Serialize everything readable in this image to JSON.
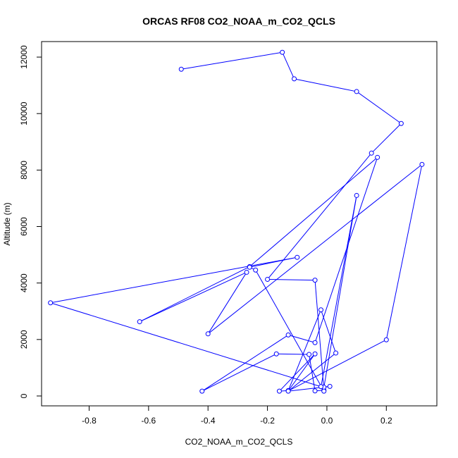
{
  "chart_data": {
    "type": "line",
    "title": "ORCAS RF08 CO2_NOAA_m_CO2_QCLS",
    "xlabel": "CO2_NOAA_m_CO2_QCLS",
    "ylabel": "Altitude (m)",
    "xlim": [
      -0.96,
      0.37
    ],
    "ylim": [
      -350,
      12550
    ],
    "x_ticks": [
      -0.8,
      -0.6,
      -0.4,
      -0.2,
      0.0,
      0.2
    ],
    "x_tick_labels": [
      "-0.8",
      "-0.6",
      "-0.4",
      "-0.2",
      "0.0",
      "0.2"
    ],
    "y_ticks": [
      0,
      2000,
      4000,
      6000,
      8000,
      10000,
      12000
    ],
    "y_tick_labels": [
      "0",
      "2000",
      "4000",
      "6000",
      "8000",
      "10000",
      "12000"
    ],
    "grid": false,
    "color": "#0000ff",
    "marker": "open-circle",
    "series": [
      {
        "points": [
          [
            -0.49,
            11570
          ],
          [
            -0.15,
            12170
          ],
          [
            -0.11,
            11230
          ],
          [
            0.1,
            10780
          ],
          [
            0.25,
            9650
          ],
          [
            0.15,
            8600
          ],
          [
            -0.2,
            4130
          ],
          [
            -0.04,
            4100
          ],
          [
            -0.01,
            200
          ],
          [
            -0.04,
            180
          ],
          [
            -0.06,
            1470
          ],
          [
            -0.17,
            1490
          ],
          [
            -0.42,
            170
          ],
          [
            -0.13,
            2160
          ],
          [
            -0.04,
            1890
          ],
          [
            0.17,
            8450
          ],
          [
            -0.26,
            4580
          ],
          [
            -0.63,
            2630
          ],
          [
            -0.27,
            4380
          ],
          [
            -0.4,
            2200
          ],
          [
            0.32,
            8200
          ],
          [
            0.2,
            1990
          ],
          [
            -0.13,
            180
          ],
          [
            -0.04,
            1490
          ],
          [
            -0.16,
            170
          ],
          [
            -0.13,
            190
          ],
          [
            -0.02,
            3050
          ],
          [
            0.03,
            1520
          ],
          [
            -0.13,
            170
          ],
          [
            0.01,
            340
          ],
          [
            -0.01,
            310
          ],
          [
            0.1,
            7100
          ],
          [
            -0.02,
            330
          ],
          [
            -0.93,
            3300
          ],
          [
            -0.1,
            4910
          ],
          [
            -0.26,
            4560
          ],
          [
            -0.24,
            4460
          ],
          [
            -0.01,
            170
          ]
        ]
      }
    ]
  }
}
